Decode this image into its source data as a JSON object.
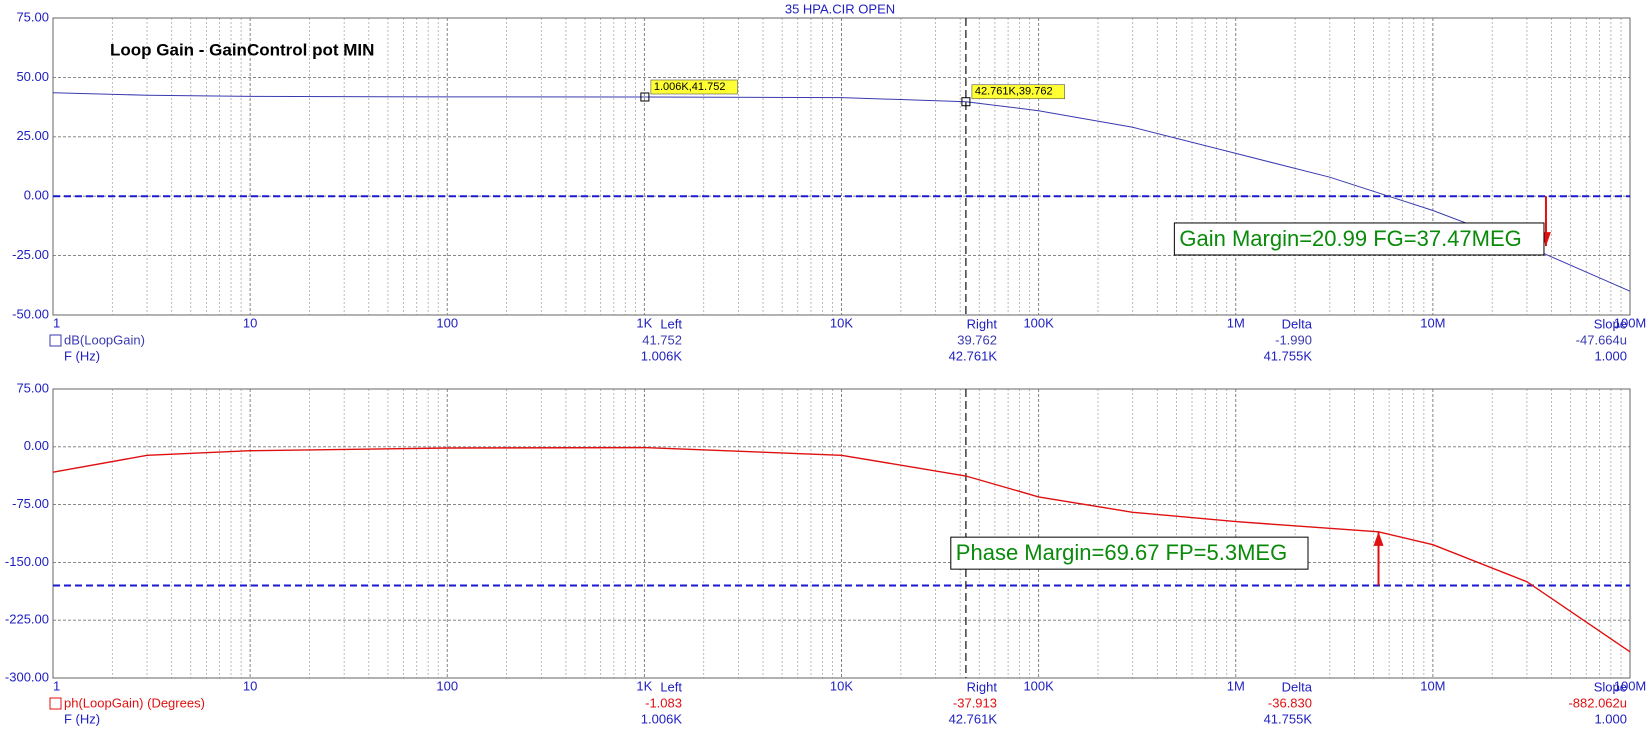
{
  "window_title": "35 HPA.CIR OPEN",
  "chart_data": [
    {
      "type": "line",
      "title": "Loop Gain - GainControl pot MIN",
      "log_x": true,
      "grid": true,
      "x": [
        1,
        3,
        10,
        100,
        1000,
        10000,
        42761,
        100000,
        300000,
        1000000,
        3000000,
        10000000,
        30000000,
        100000000
      ],
      "series": [
        {
          "name": "dB(LoopGain)",
          "color": "#3a3ab0",
          "values": [
            43.5,
            42.5,
            42,
            41.8,
            41.75,
            41.5,
            39.76,
            36,
            29,
            18,
            8,
            -6,
            -21,
            -40
          ]
        }
      ],
      "xlim": [
        1,
        100000000
      ],
      "xticks": [
        {
          "value": 1,
          "label": "1"
        },
        {
          "value": 10,
          "label": "10"
        },
        {
          "value": 100,
          "label": "100"
        },
        {
          "value": 1000,
          "label": "1K"
        },
        {
          "value": 10000,
          "label": "10K"
        },
        {
          "value": 100000,
          "label": "100K"
        },
        {
          "value": 1000000,
          "label": "1M"
        },
        {
          "value": 10000000,
          "label": "10M"
        },
        {
          "value": 100000000,
          "label": "100M"
        }
      ],
      "ylim": [
        -50,
        75
      ],
      "yticks": [
        {
          "value": -50,
          "label": "-50.00"
        },
        {
          "value": -25,
          "label": "-25.00"
        },
        {
          "value": 0,
          "label": "0.00"
        },
        {
          "value": 25,
          "label": "25.00"
        },
        {
          "value": 50,
          "label": "50.00"
        },
        {
          "value": 75,
          "label": "75.00"
        }
      ],
      "reference_line": 0,
      "cursor_x": 42761,
      "markers": [
        {
          "x": 1006,
          "y": 41.752,
          "label": "1.006K,41.752"
        },
        {
          "x": 42761,
          "y": 39.762,
          "label": "42.761K,39.762"
        }
      ],
      "margin_arrow": {
        "x": 37470000,
        "from": 0,
        "to": -20.99
      },
      "annotation": "Gain Margin=20.99 FG=37.47MEG",
      "readout": {
        "headers": [
          "Left",
          "Right",
          "Delta",
          "Slope"
        ],
        "rows": [
          [
            "dB(LoopGain)",
            "41.752",
            "39.762",
            "-1.990",
            "-47.664u"
          ],
          [
            "F (Hz)",
            "1.006K",
            "42.761K",
            "41.755K",
            "1.000"
          ]
        ]
      }
    },
    {
      "type": "line",
      "log_x": true,
      "grid": true,
      "x": [
        1,
        3,
        10,
        100,
        1000,
        10000,
        42761,
        100000,
        300000,
        1000000,
        5300000,
        10000000,
        30000000,
        100000000
      ],
      "series": [
        {
          "name": "ph(LoopGain) (Degrees)",
          "color": "#e01010",
          "values": [
            -33,
            -11,
            -5,
            -1.5,
            -1.083,
            -11,
            -37.913,
            -65,
            -85,
            -97,
            -110.33,
            -127,
            -175,
            -266
          ]
        }
      ],
      "xlim": [
        1,
        100000000
      ],
      "xticks": [
        {
          "value": 1,
          "label": "1"
        },
        {
          "value": 10,
          "label": "10"
        },
        {
          "value": 100,
          "label": "100"
        },
        {
          "value": 1000,
          "label": "1K"
        },
        {
          "value": 10000,
          "label": "10K"
        },
        {
          "value": 100000,
          "label": "100K"
        },
        {
          "value": 1000000,
          "label": "1M"
        },
        {
          "value": 10000000,
          "label": "10M"
        },
        {
          "value": 100000000,
          "label": "100M"
        }
      ],
      "ylim": [
        -300,
        75
      ],
      "yticks": [
        {
          "value": -300,
          "label": "-300.00"
        },
        {
          "value": -225,
          "label": "-225.00"
        },
        {
          "value": -150,
          "label": "-150.00"
        },
        {
          "value": -75,
          "label": "-75.00"
        },
        {
          "value": 0,
          "label": "0.00"
        },
        {
          "value": 75,
          "label": "75.00"
        }
      ],
      "reference_line": -180,
      "cursor_x": 42761,
      "margin_arrow": {
        "x": 5300000,
        "from": -180,
        "to": -110.33
      },
      "annotation": "Phase Margin=69.67 FP=5.3MEG",
      "readout": {
        "headers": [
          "Left",
          "Right",
          "Delta",
          "Slope"
        ],
        "rows": [
          [
            "ph(LoopGain) (Degrees)",
            "-1.083",
            "-37.913",
            "-36.830",
            "-882.062u"
          ],
          [
            "F (Hz)",
            "1.006K",
            "42.761K",
            "41.755K",
            "1.000"
          ]
        ]
      }
    }
  ]
}
